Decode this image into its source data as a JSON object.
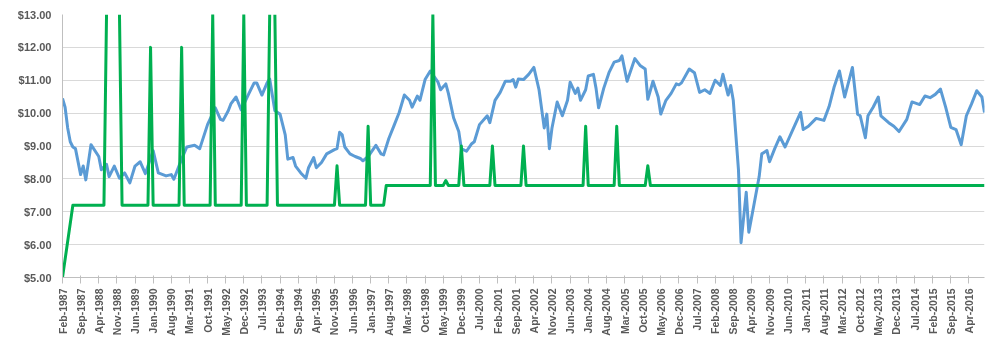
{
  "chart_data": {
    "type": "line",
    "line_style": "solid",
    "grid": "y",
    "ylim": [
      5,
      13
    ],
    "yticks": [
      {
        "value": 5,
        "label": "$5.00"
      },
      {
        "value": 6,
        "label": "$6.00"
      },
      {
        "value": 7,
        "label": "$7.00"
      },
      {
        "value": 8,
        "label": "$8.00"
      },
      {
        "value": 9,
        "label": "$9.00"
      },
      {
        "value": 10,
        "label": "$10.00"
      },
      {
        "value": 11,
        "label": "$11.00"
      },
      {
        "value": 12,
        "label": "$12.00"
      },
      {
        "value": 13,
        "label": "$13.00"
      }
    ],
    "xlim": [
      "1987-02",
      "2016-10"
    ],
    "xticks": [
      {
        "value": "1987-02",
        "label": "Feb-1987"
      },
      {
        "value": "1987-09",
        "label": "Sep-1987"
      },
      {
        "value": "1988-04",
        "label": "Apr-1988"
      },
      {
        "value": "1988-11",
        "label": "Nov-1988"
      },
      {
        "value": "1989-06",
        "label": "Jun-1989"
      },
      {
        "value": "1990-01",
        "label": "Jan-1990"
      },
      {
        "value": "1990-08",
        "label": "Aug-1990"
      },
      {
        "value": "1991-03",
        "label": "Mar-1991"
      },
      {
        "value": "1991-10",
        "label": "Oct-1991"
      },
      {
        "value": "1992-05",
        "label": "May-1992"
      },
      {
        "value": "1992-12",
        "label": "Dec-1992"
      },
      {
        "value": "1993-07",
        "label": "Jul-1993"
      },
      {
        "value": "1994-02",
        "label": "Feb-1994"
      },
      {
        "value": "1994-09",
        "label": "Sep-1994"
      },
      {
        "value": "1995-04",
        "label": "Apr-1995"
      },
      {
        "value": "1995-11",
        "label": "Nov-1995"
      },
      {
        "value": "1996-06",
        "label": "Jun-1996"
      },
      {
        "value": "1997-01",
        "label": "Jan-1997"
      },
      {
        "value": "1997-08",
        "label": "Aug-1997"
      },
      {
        "value": "1998-03",
        "label": "Mar-1998"
      },
      {
        "value": "1998-10",
        "label": "Oct-1998"
      },
      {
        "value": "1999-05",
        "label": "May-1999"
      },
      {
        "value": "1999-12",
        "label": "Dec-1999"
      },
      {
        "value": "2000-07",
        "label": "Jul-2000"
      },
      {
        "value": "2001-02",
        "label": "Feb-2001"
      },
      {
        "value": "2001-09",
        "label": "Sep-2001"
      },
      {
        "value": "2002-04",
        "label": "Apr-2002"
      },
      {
        "value": "2002-11",
        "label": "Nov-2002"
      },
      {
        "value": "2003-06",
        "label": "Jun-2003"
      },
      {
        "value": "2004-01",
        "label": "Jan-2004"
      },
      {
        "value": "2004-08",
        "label": "Aug-2004"
      },
      {
        "value": "2005-03",
        "label": "Mar-2005"
      },
      {
        "value": "2005-10",
        "label": "Oct-2005"
      },
      {
        "value": "2006-05",
        "label": "May-2006"
      },
      {
        "value": "2006-12",
        "label": "Dec-2006"
      },
      {
        "value": "2007-07",
        "label": "Jul-2007"
      },
      {
        "value": "2008-02",
        "label": "Feb-2008"
      },
      {
        "value": "2008-09",
        "label": "Sep-2008"
      },
      {
        "value": "2009-04",
        "label": "Apr-2009"
      },
      {
        "value": "2009-11",
        "label": "Nov-2009"
      },
      {
        "value": "2010-06",
        "label": "Jun-2010"
      },
      {
        "value": "2011-01",
        "label": "Jan-2011"
      },
      {
        "value": "2011-08",
        "label": "Aug-2011"
      },
      {
        "value": "2012-03",
        "label": "Mar-2012"
      },
      {
        "value": "2012-10",
        "label": "Oct-2012"
      },
      {
        "value": "2013-05",
        "label": "May-2013"
      },
      {
        "value": "2013-12",
        "label": "Dec-2013"
      },
      {
        "value": "2014-07",
        "label": "Jul-2014"
      },
      {
        "value": "2015-02",
        "label": "Feb-2015"
      },
      {
        "value": "2015-09",
        "label": "Sep-2015"
      },
      {
        "value": "2016-04",
        "label": "Apr-2016"
      }
    ],
    "series": [
      {
        "color": "#5b9bd5",
        "x": [
          "1987-02",
          "1987-03",
          "1987-04",
          "1987-05",
          "1987-06",
          "1987-07",
          "1987-09",
          "1987-10",
          "1987-11",
          "1988-01",
          "1988-04",
          "1988-05",
          "1988-07",
          "1988-08",
          "1988-10",
          "1988-12",
          "1989-02",
          "1989-04",
          "1989-06",
          "1989-08",
          "1989-10",
          "1990-01",
          "1990-03",
          "1990-06",
          "1990-08",
          "1990-09",
          "1990-12",
          "1991-02",
          "1991-05",
          "1991-07",
          "1991-10",
          "1992-01",
          "1992-03",
          "1992-04",
          "1992-06",
          "1992-07",
          "1992-09",
          "1992-11",
          "1993-02",
          "1993-04",
          "1993-05",
          "1993-07",
          "1993-09",
          "1993-10",
          "1993-12",
          "1994-02",
          "1994-04",
          "1994-05",
          "1994-07",
          "1994-08",
          "1994-10",
          "1994-12",
          "1995-01",
          "1995-03",
          "1995-04",
          "1995-06",
          "1995-08",
          "1995-11",
          "1995-12",
          "1996-01",
          "1996-02",
          "1996-03",
          "1996-05",
          "1996-07",
          "1996-09",
          "1996-10",
          "1996-12",
          "1997-03",
          "1997-05",
          "1997-06",
          "1997-08",
          "1997-10",
          "1997-12",
          "1998-02",
          "1998-04",
          "1998-05",
          "1998-07",
          "1998-08",
          "1998-10",
          "1998-12",
          "1999-03",
          "1999-04",
          "1999-06",
          "1999-07",
          "1999-09",
          "1999-11",
          "1999-12",
          "2000-02",
          "2000-04",
          "2000-05",
          "2000-07",
          "2000-10",
          "2000-11",
          "2001-01",
          "2001-03",
          "2001-05",
          "2001-07",
          "2001-08",
          "2001-09",
          "2001-10",
          "2001-12",
          "2002-02",
          "2002-04",
          "2002-06",
          "2002-08",
          "2002-09",
          "2002-10",
          "2002-11",
          "2003-01",
          "2003-03",
          "2003-05",
          "2003-06",
          "2003-08",
          "2003-09",
          "2003-10",
          "2003-12",
          "2004-01",
          "2004-03",
          "2004-04",
          "2004-05",
          "2004-07",
          "2004-09",
          "2004-11",
          "2005-01",
          "2005-02",
          "2005-04",
          "2005-07",
          "2005-09",
          "2005-11",
          "2005-12",
          "2006-02",
          "2006-04",
          "2006-05",
          "2006-07",
          "2006-09",
          "2006-11",
          "2006-12",
          "2007-01",
          "2007-04",
          "2007-06",
          "2007-08",
          "2007-10",
          "2007-12",
          "2008-02",
          "2008-04",
          "2008-05",
          "2008-07",
          "2008-08",
          "2008-09",
          "2008-11",
          "2008-12",
          "2009-02",
          "2009-03",
          "2009-05",
          "2009-07",
          "2009-08",
          "2009-10",
          "2009-11",
          "2010-01",
          "2010-03",
          "2010-05",
          "2010-08",
          "2010-11",
          "2010-12",
          "2011-02",
          "2011-05",
          "2011-08",
          "2011-10",
          "2011-12",
          "2012-02",
          "2012-04",
          "2012-07",
          "2012-09",
          "2012-10",
          "2012-12",
          "2013-01",
          "2013-03",
          "2013-05",
          "2013-06",
          "2013-09",
          "2013-11",
          "2014-01",
          "2014-04",
          "2014-06",
          "2014-09",
          "2014-11",
          "2015-01",
          "2015-03",
          "2015-05",
          "2015-07",
          "2015-09",
          "2015-11",
          "2016-01",
          "2016-03",
          "2016-05",
          "2016-07",
          "2016-09",
          "2016-10"
        ],
        "values": [
          10.45,
          10.18,
          9.55,
          9.13,
          8.97,
          8.92,
          8.13,
          8.39,
          7.97,
          9.04,
          8.68,
          8.28,
          8.44,
          8.07,
          8.39,
          8.02,
          8.18,
          7.88,
          8.39,
          8.52,
          8.16,
          8.86,
          8.18,
          8.09,
          8.13,
          7.99,
          8.6,
          8.97,
          9.02,
          8.92,
          9.65,
          10.16,
          9.81,
          9.78,
          10.07,
          10.28,
          10.49,
          10.1,
          10.6,
          10.92,
          10.92,
          10.55,
          10.92,
          11.04,
          10.07,
          9.97,
          9.34,
          8.6,
          8.65,
          8.39,
          8.18,
          8.02,
          8.34,
          8.65,
          8.34,
          8.5,
          8.76,
          8.89,
          8.92,
          9.42,
          9.34,
          8.97,
          8.76,
          8.68,
          8.62,
          8.55,
          8.68,
          9.02,
          8.76,
          8.73,
          9.23,
          9.62,
          10.02,
          10.55,
          10.39,
          10.18,
          10.52,
          10.39,
          11.02,
          11.28,
          10.94,
          10.71,
          10.89,
          10.6,
          9.86,
          9.44,
          8.92,
          8.84,
          9.07,
          9.13,
          9.65,
          9.92,
          9.71,
          10.39,
          10.63,
          10.97,
          10.97,
          11.02,
          10.79,
          11.04,
          11.02,
          11.18,
          11.39,
          10.71,
          9.55,
          9.97,
          8.92,
          9.55,
          10.34,
          9.92,
          10.39,
          10.94,
          10.6,
          10.76,
          10.39,
          10.71,
          11.13,
          11.18,
          10.76,
          10.16,
          10.76,
          11.23,
          11.55,
          11.6,
          11.74,
          10.97,
          11.66,
          11.45,
          11.34,
          10.42,
          10.97,
          10.49,
          9.97,
          10.39,
          10.6,
          10.89,
          10.86,
          10.92,
          11.34,
          11.23,
          10.63,
          10.71,
          10.6,
          11.0,
          10.84,
          11.18,
          10.55,
          10.84,
          10.39,
          8.28,
          6.06,
          7.59,
          6.38,
          7.22,
          8.07,
          8.76,
          8.86,
          8.52,
          8.92,
          9.28,
          8.97,
          9.5,
          10.02,
          9.5,
          9.6,
          9.84,
          9.78,
          10.2,
          10.81,
          11.28,
          10.49,
          11.39,
          9.97,
          9.92,
          9.25,
          9.92,
          10.18,
          10.49,
          9.92,
          9.71,
          9.6,
          9.44,
          9.81,
          10.34,
          10.26,
          10.52,
          10.47,
          10.57,
          10.73,
          10.18,
          9.57,
          9.5,
          9.04,
          9.92,
          10.28,
          10.68,
          10.49,
          10.02
        ]
      },
      {
        "color": "#00b050",
        "x": [
          "1987-02",
          "1987-06",
          "1988-06",
          "1988-07",
          "1988-08",
          "1988-12",
          "1989-01",
          "1989-11",
          "1989-12",
          "1990-01",
          "1990-11",
          "1990-12",
          "1991-01",
          "1991-11",
          "1991-12",
          "1992-01",
          "1992-11",
          "1992-12",
          "1993-01",
          "1993-09",
          "1993-10",
          "1993-11",
          "1993-12",
          "1994-01",
          "1995-11",
          "1995-12",
          "1996-01",
          "1996-11",
          "1996-12",
          "1997-01",
          "1997-06",
          "1997-07",
          "1998-12",
          "1999-01",
          "1999-02",
          "1999-05",
          "1999-06",
          "1999-07",
          "1999-11",
          "1999-12",
          "2000-01",
          "2000-11",
          "2000-12",
          "2001-01",
          "2001-11",
          "2001-12",
          "2002-01",
          "2003-11",
          "2003-12",
          "2004-01",
          "2004-11",
          "2004-12",
          "2005-01",
          "2005-11",
          "2005-12",
          "2006-01",
          "2016-10"
        ],
        "values": [
          5.0,
          7.2,
          7.2,
          13,
          null,
          13,
          7.2,
          7.2,
          12,
          7.2,
          7.2,
          12,
          7.2,
          7.2,
          13,
          7.2,
          7.2,
          13,
          7.2,
          7.2,
          13,
          null,
          13,
          7.2,
          7.2,
          8.4,
          7.2,
          7.2,
          9.6,
          7.2,
          7.2,
          7.8,
          7.8,
          13,
          7.8,
          7.8,
          7.95,
          7.8,
          7.8,
          9.0,
          7.8,
          7.8,
          9.0,
          7.8,
          7.8,
          9.0,
          7.8,
          7.8,
          9.6,
          7.8,
          7.8,
          9.6,
          7.8,
          7.8,
          8.4,
          7.8,
          7.8
        ]
      }
    ]
  }
}
